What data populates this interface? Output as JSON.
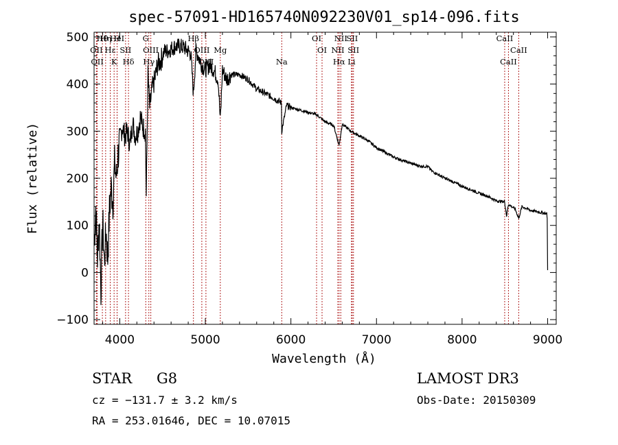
{
  "chart_data": {
    "type": "line",
    "title": "spec-57091-HD165740N092230V01_sp14-096.fits",
    "xlabel": "Wavelength (Å)",
    "ylabel": "Flux (relative)",
    "xlim": [
      3700,
      9100
    ],
    "ylim": [
      -110,
      510
    ],
    "x_ticks": [
      4000,
      5000,
      6000,
      7000,
      8000,
      9000
    ],
    "y_ticks": [
      -100,
      0,
      100,
      200,
      300,
      400,
      500
    ],
    "grid": false,
    "series": [
      {
        "name": "spectrum",
        "x": [
          3700,
          3720,
          3740,
          3760,
          3780,
          3800,
          3820,
          3840,
          3860,
          3880,
          3900,
          3920,
          3940,
          3960,
          3980,
          4000,
          4030,
          4060,
          4090,
          4120,
          4150,
          4180,
          4210,
          4240,
          4270,
          4300,
          4310,
          4330,
          4350,
          4380,
          4410,
          4440,
          4480,
          4520,
          4560,
          4600,
          4650,
          4700,
          4750,
          4800,
          4830,
          4861,
          4890,
          4920,
          4960,
          5000,
          5050,
          5100,
          5150,
          5175,
          5200,
          5250,
          5300,
          5400,
          5500,
          5600,
          5700,
          5800,
          5890,
          5893,
          5950,
          6000,
          6100,
          6200,
          6300,
          6400,
          6500,
          6563,
          6600,
          6700,
          6800,
          6900,
          7000,
          7100,
          7200,
          7300,
          7400,
          7500,
          7600,
          7650,
          7700,
          7800,
          7900,
          8000,
          8100,
          8200,
          8300,
          8400,
          8498,
          8520,
          8542,
          8580,
          8620,
          8662,
          8700,
          8800,
          8900,
          8990,
          8995,
          9000
        ],
        "values": [
          60,
          140,
          30,
          120,
          -40,
          110,
          20,
          90,
          30,
          130,
          180,
          150,
          230,
          200,
          250,
          280,
          310,
          290,
          300,
          270,
          320,
          290,
          300,
          330,
          310,
          300,
          160,
          420,
          350,
          390,
          410,
          440,
          450,
          470,
          470,
          475,
          480,
          480,
          478,
          470,
          465,
          380,
          470,
          460,
          440,
          430,
          440,
          430,
          410,
          320,
          430,
          410,
          420,
          420,
          410,
          390,
          380,
          370,
          360,
          300,
          355,
          350,
          345,
          340,
          335,
          320,
          312,
          270,
          315,
          300,
          290,
          280,
          265,
          255,
          245,
          238,
          232,
          226,
          225,
          215,
          210,
          200,
          192,
          183,
          176,
          168,
          162,
          152,
          150,
          120,
          145,
          140,
          135,
          115,
          140,
          132,
          128,
          125,
          115,
          5
        ]
      }
    ],
    "lines": [
      {
        "label": "Hθ",
        "x": 3797
      },
      {
        "label": "OII",
        "x": 3727
      },
      {
        "label": "OII",
        "x": 3737
      },
      {
        "label": "Hη",
        "x": 3835
      },
      {
        "label": "Hε",
        "x": 3889
      },
      {
        "label": "K",
        "x": 3934
      },
      {
        "label": "HeI",
        "x": 3969
      },
      {
        "label": "SII",
        "x": 4068
      },
      {
        "label": "Hδ",
        "x": 4102
      },
      {
        "label": "H",
        "x": 3969
      },
      {
        "label": "OIII",
        "x": 4363
      },
      {
        "label": "Hγ",
        "x": 4340
      },
      {
        "label": "G",
        "x": 4304
      },
      {
        "label": "OIII",
        "x": 4959
      },
      {
        "label": "OIII",
        "x": 5007
      },
      {
        "label": "Hβ",
        "x": 4861
      },
      {
        "label": "Mg",
        "x": 5175
      },
      {
        "label": "Na",
        "x": 5893
      },
      {
        "label": "OI",
        "x": 6300
      },
      {
        "label": "OI",
        "x": 6364
      },
      {
        "label": "Hα",
        "x": 6563
      },
      {
        "label": "SII",
        "x": 6716
      },
      {
        "label": "NII",
        "x": 6548
      },
      {
        "label": "Li",
        "x": 6708
      },
      {
        "label": "NII",
        "x": 6583
      },
      {
        "label": "SII",
        "x": 6731
      },
      {
        "label": "CaII",
        "x": 8542
      },
      {
        "label": "CaII",
        "x": 8498
      },
      {
        "label": "CaII",
        "x": 8662
      }
    ]
  },
  "info": {
    "object_type": "STAR",
    "subclass": "G8",
    "survey": "LAMOST DR3",
    "cz": "cz = −131.7 ± 3.2 km/s",
    "obs_date": "Obs-Date: 20150309",
    "coords": "RA = 253.01646, DEC =  10.07015"
  },
  "colors": {
    "spectrum": "#000000",
    "line_marker": "#b22222"
  }
}
